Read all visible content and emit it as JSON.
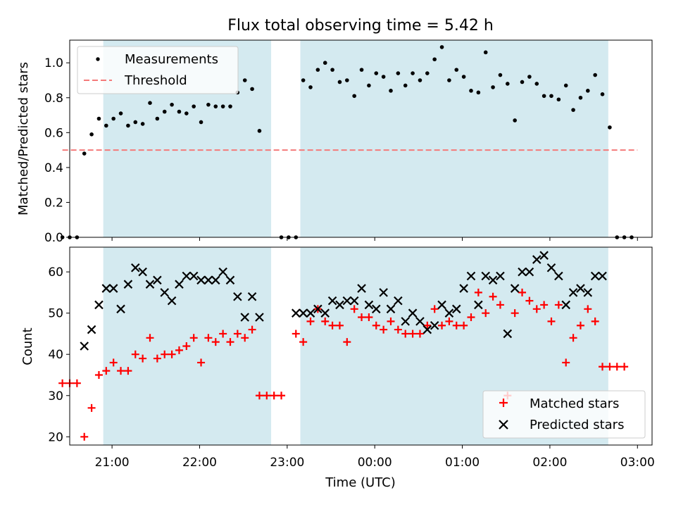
{
  "chart_data": [
    {
      "type": "scatter",
      "title": "Flux total observing time = 5.42 h",
      "ylabel": "Matched/Predicted stars",
      "xlabel": "",
      "xlim": [
        "20:31",
        "03:10"
      ],
      "ylim": [
        0,
        1.13
      ],
      "yticks": [
        0.0,
        0.2,
        0.4,
        0.6,
        0.8,
        1.0
      ],
      "ytick_labels": [
        "0.0",
        "0.2",
        "0.4",
        "0.6",
        "0.8",
        "1.0"
      ],
      "shaded_intervals": [
        [
          "20:54",
          "22:49"
        ],
        [
          "23:09",
          "02:40"
        ]
      ],
      "shade_color": "#d4eaf0",
      "legend_position": "upper left",
      "series": [
        {
          "name": "Measurements",
          "marker": "dot",
          "color": "#000000",
          "points": [
            [
              "20:26",
              0.0
            ],
            [
              "20:31",
              0.0
            ],
            [
              "20:36",
              0.0
            ],
            [
              "20:41",
              0.48
            ],
            [
              "20:46",
              0.59
            ],
            [
              "20:51",
              0.68
            ],
            [
              "20:56",
              0.64
            ],
            [
              "21:01",
              0.68
            ],
            [
              "21:06",
              0.71
            ],
            [
              "21:11",
              0.64
            ],
            [
              "21:16",
              0.66
            ],
            [
              "21:21",
              0.65
            ],
            [
              "21:26",
              0.77
            ],
            [
              "21:31",
              0.68
            ],
            [
              "21:36",
              0.72
            ],
            [
              "21:41",
              0.76
            ],
            [
              "21:46",
              0.72
            ],
            [
              "21:51",
              0.71
            ],
            [
              "21:56",
              0.75
            ],
            [
              "22:01",
              0.66
            ],
            [
              "22:06",
              0.76
            ],
            [
              "22:11",
              0.75
            ],
            [
              "22:16",
              0.75
            ],
            [
              "22:21",
              0.75
            ],
            [
              "22:26",
              0.83
            ],
            [
              "22:31",
              0.9
            ],
            [
              "22:36",
              0.85
            ],
            [
              "22:41",
              0.61
            ],
            [
              "22:56",
              0.0
            ],
            [
              "23:01",
              0.0
            ],
            [
              "23:06",
              0.0
            ],
            [
              "23:11",
              0.9
            ],
            [
              "23:16",
              0.86
            ],
            [
              "23:21",
              0.96
            ],
            [
              "23:26",
              1.0
            ],
            [
              "23:31",
              0.96
            ],
            [
              "23:36",
              0.89
            ],
            [
              "23:41",
              0.9
            ],
            [
              "23:46",
              0.81
            ],
            [
              "23:51",
              0.96
            ],
            [
              "23:56",
              0.87
            ],
            [
              "00:01",
              0.94
            ],
            [
              "00:06",
              0.92
            ],
            [
              "00:11",
              0.84
            ],
            [
              "00:16",
              0.94
            ],
            [
              "00:21",
              0.87
            ],
            [
              "00:26",
              0.94
            ],
            [
              "00:31",
              0.9
            ],
            [
              "00:36",
              0.94
            ],
            [
              "00:41",
              1.02
            ],
            [
              "00:46",
              1.09
            ],
            [
              "00:51",
              0.9
            ],
            [
              "00:56",
              0.96
            ],
            [
              "01:01",
              0.92
            ],
            [
              "01:06",
              0.84
            ],
            [
              "01:11",
              0.83
            ],
            [
              "01:16",
              1.06
            ],
            [
              "01:21",
              0.86
            ],
            [
              "01:26",
              0.93
            ],
            [
              "01:31",
              0.88
            ],
            [
              "01:36",
              0.67
            ],
            [
              "01:41",
              0.89
            ],
            [
              "01:46",
              0.92
            ],
            [
              "01:51",
              0.88
            ],
            [
              "01:56",
              0.81
            ],
            [
              "02:01",
              0.81
            ],
            [
              "02:06",
              0.79
            ],
            [
              "02:11",
              0.87
            ],
            [
              "02:16",
              0.73
            ],
            [
              "02:21",
              0.8
            ],
            [
              "02:26",
              0.84
            ],
            [
              "02:31",
              0.93
            ],
            [
              "02:36",
              0.82
            ],
            [
              "02:41",
              0.63
            ],
            [
              "02:46",
              0.0
            ],
            [
              "02:51",
              0.0
            ],
            [
              "02:56",
              0.0
            ]
          ]
        },
        {
          "name": "Threshold",
          "marker": "dashed-line",
          "color": "#f47a7a",
          "points": [
            [
              "20:26",
              0.5
            ],
            [
              "03:00",
              0.5
            ]
          ]
        }
      ]
    },
    {
      "type": "scatter",
      "title": "",
      "ylabel": "Count",
      "xlabel": "Time (UTC)",
      "xlim": [
        "20:31",
        "03:10"
      ],
      "ylim": [
        18,
        66
      ],
      "yticks": [
        20,
        30,
        40,
        50,
        60
      ],
      "ytick_labels": [
        "20",
        "30",
        "40",
        "50",
        "60"
      ],
      "xticks": [
        "21:00",
        "22:00",
        "23:00",
        "00:00",
        "01:00",
        "02:00",
        "03:00"
      ],
      "shaded_intervals": [
        [
          "20:54",
          "22:49"
        ],
        [
          "23:09",
          "02:40"
        ]
      ],
      "shade_color": "#d4eaf0",
      "legend_position": "lower right",
      "series": [
        {
          "name": "Matched stars",
          "marker": "plus",
          "color": "#ff0000",
          "points": [
            [
              "20:26",
              33
            ],
            [
              "20:31",
              33
            ],
            [
              "20:36",
              33
            ],
            [
              "20:41",
              20
            ],
            [
              "20:46",
              27
            ],
            [
              "20:51",
              35
            ],
            [
              "20:56",
              36
            ],
            [
              "21:01",
              38
            ],
            [
              "21:06",
              36
            ],
            [
              "21:11",
              36
            ],
            [
              "21:16",
              40
            ],
            [
              "21:21",
              39
            ],
            [
              "21:26",
              44
            ],
            [
              "21:31",
              39
            ],
            [
              "21:36",
              40
            ],
            [
              "21:41",
              40
            ],
            [
              "21:46",
              41
            ],
            [
              "21:51",
              42
            ],
            [
              "21:56",
              44
            ],
            [
              "22:01",
              38
            ],
            [
              "22:06",
              44
            ],
            [
              "22:11",
              43
            ],
            [
              "22:16",
              45
            ],
            [
              "22:21",
              43
            ],
            [
              "22:26",
              45
            ],
            [
              "22:31",
              44
            ],
            [
              "22:36",
              46
            ],
            [
              "22:41",
              30
            ],
            [
              "22:46",
              30
            ],
            [
              "22:51",
              30
            ],
            [
              "22:56",
              30
            ],
            [
              "23:06",
              45
            ],
            [
              "23:11",
              43
            ],
            [
              "23:16",
              48
            ],
            [
              "23:21",
              51
            ],
            [
              "23:26",
              48
            ],
            [
              "23:31",
              47
            ],
            [
              "23:36",
              47
            ],
            [
              "23:41",
              43
            ],
            [
              "23:46",
              51
            ],
            [
              "23:51",
              49
            ],
            [
              "23:56",
              49
            ],
            [
              "00:01",
              47
            ],
            [
              "00:06",
              46
            ],
            [
              "00:11",
              48
            ],
            [
              "00:16",
              46
            ],
            [
              "00:21",
              45
            ],
            [
              "00:26",
              45
            ],
            [
              "00:31",
              45
            ],
            [
              "00:36",
              47
            ],
            [
              "00:41",
              51
            ],
            [
              "00:46",
              47
            ],
            [
              "00:51",
              48
            ],
            [
              "00:56",
              47
            ],
            [
              "01:01",
              47
            ],
            [
              "01:06",
              49
            ],
            [
              "01:11",
              55
            ],
            [
              "01:16",
              50
            ],
            [
              "01:21",
              54
            ],
            [
              "01:26",
              52
            ],
            [
              "01:31",
              30
            ],
            [
              "01:36",
              50
            ],
            [
              "01:41",
              55
            ],
            [
              "01:46",
              53
            ],
            [
              "01:51",
              51
            ],
            [
              "01:56",
              52
            ],
            [
              "02:01",
              48
            ],
            [
              "02:06",
              52
            ],
            [
              "02:11",
              38
            ],
            [
              "02:16",
              44
            ],
            [
              "02:21",
              47
            ],
            [
              "02:26",
              51
            ],
            [
              "02:31",
              48
            ],
            [
              "02:36",
              37
            ],
            [
              "02:41",
              37
            ],
            [
              "02:46",
              37
            ],
            [
              "02:51",
              37
            ]
          ]
        },
        {
          "name": "Predicted stars",
          "marker": "x",
          "color": "#000000",
          "points": [
            [
              "20:41",
              42
            ],
            [
              "20:46",
              46
            ],
            [
              "20:51",
              52
            ],
            [
              "20:56",
              56
            ],
            [
              "21:01",
              56
            ],
            [
              "21:06",
              51
            ],
            [
              "21:11",
              57
            ],
            [
              "21:16",
              61
            ],
            [
              "21:21",
              60
            ],
            [
              "21:26",
              57
            ],
            [
              "21:31",
              58
            ],
            [
              "21:36",
              55
            ],
            [
              "21:41",
              53
            ],
            [
              "21:46",
              57
            ],
            [
              "21:51",
              59
            ],
            [
              "21:56",
              59
            ],
            [
              "22:01",
              58
            ],
            [
              "22:06",
              58
            ],
            [
              "22:11",
              58
            ],
            [
              "22:16",
              60
            ],
            [
              "22:21",
              58
            ],
            [
              "22:26",
              54
            ],
            [
              "22:31",
              49
            ],
            [
              "22:36",
              54
            ],
            [
              "22:41",
              49
            ],
            [
              "23:06",
              50
            ],
            [
              "23:11",
              50
            ],
            [
              "23:16",
              50
            ],
            [
              "23:21",
              51
            ],
            [
              "23:26",
              50
            ],
            [
              "23:31",
              53
            ],
            [
              "23:36",
              52
            ],
            [
              "23:41",
              53
            ],
            [
              "23:46",
              53
            ],
            [
              "23:51",
              56
            ],
            [
              "23:56",
              52
            ],
            [
              "00:01",
              51
            ],
            [
              "00:06",
              55
            ],
            [
              "00:11",
              51
            ],
            [
              "00:16",
              53
            ],
            [
              "00:21",
              48
            ],
            [
              "00:26",
              50
            ],
            [
              "00:31",
              48
            ],
            [
              "00:36",
              46
            ],
            [
              "00:41",
              47
            ],
            [
              "00:46",
              52
            ],
            [
              "00:51",
              50
            ],
            [
              "00:56",
              51
            ],
            [
              "01:01",
              56
            ],
            [
              "01:06",
              59
            ],
            [
              "01:11",
              52
            ],
            [
              "01:16",
              59
            ],
            [
              "01:21",
              58
            ],
            [
              "01:26",
              59
            ],
            [
              "01:31",
              45
            ],
            [
              "01:36",
              56
            ],
            [
              "01:41",
              60
            ],
            [
              "01:46",
              60
            ],
            [
              "01:51",
              63
            ],
            [
              "01:56",
              64
            ],
            [
              "02:01",
              61
            ],
            [
              "02:06",
              59
            ],
            [
              "02:11",
              52
            ],
            [
              "02:16",
              55
            ],
            [
              "02:21",
              56
            ],
            [
              "02:26",
              55
            ],
            [
              "02:31",
              59
            ],
            [
              "02:36",
              59
            ]
          ]
        }
      ]
    }
  ]
}
